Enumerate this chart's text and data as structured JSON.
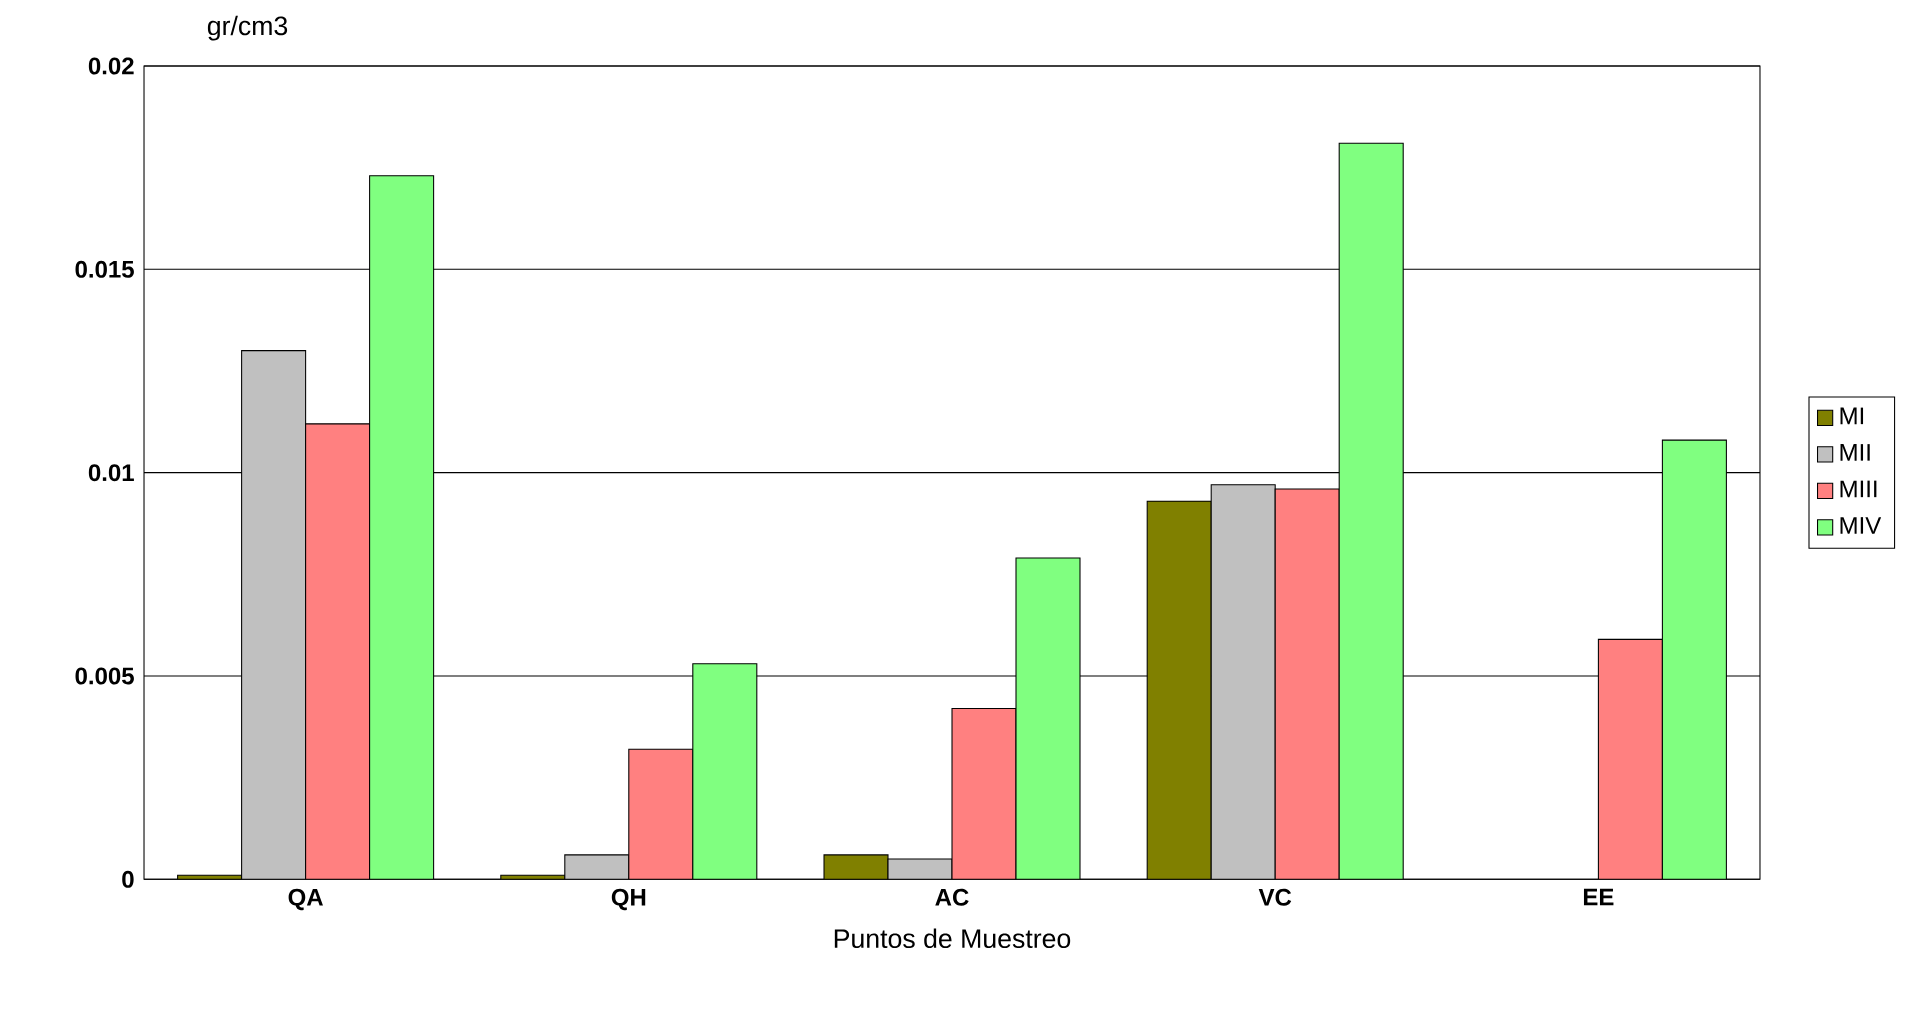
{
  "chart_data": {
    "type": "bar",
    "ylabel": "gr/cm3",
    "xlabel": "Puntos de Muestreo",
    "categories": [
      "QA",
      "QH",
      "AC",
      "VC",
      "EE"
    ],
    "series": [
      {
        "name": "MI",
        "color": "#808000",
        "values": [
          0.0001,
          0.0001,
          0.0006,
          0.0093,
          null
        ]
      },
      {
        "name": "MII",
        "color": "#c0c0c0",
        "values": [
          0.013,
          0.0006,
          0.0005,
          0.0097,
          null
        ]
      },
      {
        "name": "MIII",
        "color": "#ff8080",
        "values": [
          0.0112,
          0.0032,
          0.0042,
          0.0096,
          0.0059
        ]
      },
      {
        "name": "MIV",
        "color": "#80ff80",
        "values": [
          0.0173,
          0.0053,
          0.0079,
          0.0181,
          0.0108
        ]
      }
    ],
    "ylim": [
      0,
      0.02
    ],
    "yticks": [
      0,
      0.005,
      0.01,
      0.015,
      0.02
    ],
    "grid": "y",
    "legend": "right"
  }
}
